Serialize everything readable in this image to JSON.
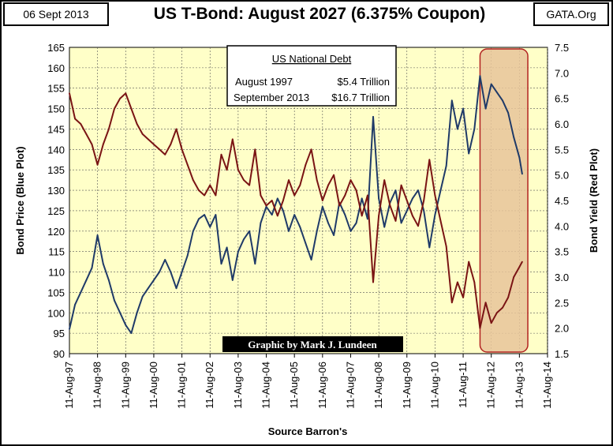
{
  "header": {
    "date": "06 Sept 2013",
    "source_site": "GATA.Org"
  },
  "chart_data": {
    "type": "line",
    "title": "US T-Bond: August 2027 (6.375% Coupon)",
    "xlabel": "Source Barron's",
    "ylabel_left": "Bond Price  (Blue Plot)",
    "ylabel_right": "Bond Yield  (Red Plot)",
    "ylim_left": [
      90,
      165
    ],
    "yticks_left": [
      "90",
      "95",
      "100",
      "105",
      "110",
      "115",
      "120",
      "125",
      "130",
      "135",
      "140",
      "145",
      "150",
      "155",
      "160",
      "165"
    ],
    "ylim_right": [
      1.5,
      7.5
    ],
    "yticks_right": [
      "1.5",
      "2.0",
      "2.5",
      "3.0",
      "3.5",
      "4.0",
      "4.5",
      "5.0",
      "5.5",
      "6.0",
      "6.5",
      "7.0",
      "7.5"
    ],
    "xlim": [
      1997.6,
      2014.6
    ],
    "x_categories": [
      "11-Aug-97",
      "11-Aug-98",
      "11-Aug-99",
      "11-Aug-00",
      "11-Aug-01",
      "11-Aug-02",
      "11-Aug-03",
      "11-Aug-04",
      "11-Aug-05",
      "11-Aug-06",
      "11-Aug-07",
      "11-Aug-08",
      "11-Aug-09",
      "11-Aug-10",
      "11-Aug-11",
      "11-Aug-12",
      "11-Aug-13",
      "11-Aug-14"
    ],
    "series": [
      {
        "name": "Bond Price (Blue Plot)",
        "axis": "left",
        "color": "#1f3a68",
        "x": [
          1997.6,
          1997.8,
          1998.0,
          1998.2,
          1998.4,
          1998.6,
          1998.8,
          1999.0,
          1999.2,
          1999.4,
          1999.6,
          1999.8,
          2000.0,
          2000.2,
          2000.4,
          2000.6,
          2000.8,
          2001.0,
          2001.2,
          2001.4,
          2001.6,
          2001.8,
          2002.0,
          2002.2,
          2002.4,
          2002.6,
          2002.8,
          2003.0,
          2003.2,
          2003.4,
          2003.6,
          2003.8,
          2004.0,
          2004.2,
          2004.4,
          2004.6,
          2004.8,
          2005.0,
          2005.2,
          2005.4,
          2005.6,
          2005.8,
          2006.0,
          2006.2,
          2006.4,
          2006.6,
          2006.8,
          2007.0,
          2007.2,
          2007.4,
          2007.6,
          2007.8,
          2008.0,
          2008.2,
          2008.4,
          2008.6,
          2008.8,
          2009.0,
          2009.2,
          2009.4,
          2009.6,
          2009.8,
          2010.0,
          2010.2,
          2010.4,
          2010.6,
          2010.8,
          2011.0,
          2011.2,
          2011.4,
          2011.6,
          2011.8,
          2012.0,
          2012.2,
          2012.4,
          2012.6,
          2012.8,
          2013.0,
          2013.2,
          2013.4,
          2013.6,
          2013.7
        ],
        "values": [
          96,
          102,
          105,
          108,
          111,
          119,
          112,
          108,
          103,
          100,
          97,
          95,
          100,
          104,
          106,
          108,
          110,
          113,
          110,
          106,
          110,
          114,
          120,
          123,
          124,
          121,
          124,
          112,
          116,
          108,
          115,
          118,
          120,
          112,
          122,
          126,
          124,
          128,
          125,
          120,
          124,
          121,
          117,
          113,
          120,
          126,
          122,
          119,
          127,
          124,
          120,
          122,
          128,
          123,
          148,
          128,
          121,
          127,
          130,
          122,
          125,
          128,
          130,
          125,
          116,
          124,
          130,
          136,
          152,
          145,
          150,
          139,
          145,
          158,
          150,
          156,
          154,
          152,
          149,
          143,
          138,
          134
        ]
      },
      {
        "name": "Bond Yield (Red Plot)",
        "axis": "right",
        "color": "#7a1414",
        "x": [
          1997.6,
          1997.8,
          1998.0,
          1998.2,
          1998.4,
          1998.6,
          1998.8,
          1999.0,
          1999.2,
          1999.4,
          1999.6,
          1999.8,
          2000.0,
          2000.2,
          2000.4,
          2000.6,
          2000.8,
          2001.0,
          2001.2,
          2001.4,
          2001.6,
          2001.8,
          2002.0,
          2002.2,
          2002.4,
          2002.6,
          2002.8,
          2003.0,
          2003.2,
          2003.4,
          2003.6,
          2003.8,
          2004.0,
          2004.2,
          2004.4,
          2004.6,
          2004.8,
          2005.0,
          2005.2,
          2005.4,
          2005.6,
          2005.8,
          2006.0,
          2006.2,
          2006.4,
          2006.6,
          2006.8,
          2007.0,
          2007.2,
          2007.4,
          2007.6,
          2007.8,
          2008.0,
          2008.2,
          2008.4,
          2008.6,
          2008.8,
          2009.0,
          2009.2,
          2009.4,
          2009.6,
          2009.8,
          2010.0,
          2010.2,
          2010.4,
          2010.6,
          2010.8,
          2011.0,
          2011.2,
          2011.4,
          2011.6,
          2011.8,
          2012.0,
          2012.2,
          2012.4,
          2012.6,
          2012.8,
          2013.0,
          2013.2,
          2013.4,
          2013.6,
          2013.7
        ],
        "values": [
          6.6,
          6.1,
          6.0,
          5.8,
          5.6,
          5.2,
          5.6,
          5.9,
          6.3,
          6.5,
          6.6,
          6.3,
          6.0,
          5.8,
          5.7,
          5.6,
          5.5,
          5.4,
          5.6,
          5.9,
          5.5,
          5.2,
          4.9,
          4.7,
          4.6,
          4.8,
          4.6,
          5.4,
          5.1,
          5.7,
          5.1,
          4.9,
          4.8,
          5.5,
          4.6,
          4.4,
          4.5,
          4.2,
          4.5,
          4.9,
          4.6,
          4.8,
          5.2,
          5.5,
          4.9,
          4.5,
          4.8,
          5.0,
          4.4,
          4.6,
          4.9,
          4.7,
          4.2,
          4.6,
          2.9,
          4.2,
          4.9,
          4.4,
          4.1,
          4.8,
          4.5,
          4.2,
          4.0,
          4.5,
          5.3,
          4.6,
          4.1,
          3.6,
          2.5,
          2.9,
          2.6,
          3.3,
          2.9,
          2.0,
          2.5,
          2.1,
          2.3,
          2.4,
          2.6,
          3.0,
          3.2,
          3.3
        ]
      }
    ],
    "highlight": {
      "from": 2012.2,
      "to": 2013.9
    },
    "annotation": {
      "title": "US National Debt",
      "rows": [
        {
          "label": "August 1997",
          "value": "$5.4 Trillion"
        },
        {
          "label": "September 2013",
          "value": "$16.7 Trillion"
        }
      ]
    },
    "credit": "Graphic by Mark J. Lundeen",
    "grid": true,
    "legend": "none"
  }
}
